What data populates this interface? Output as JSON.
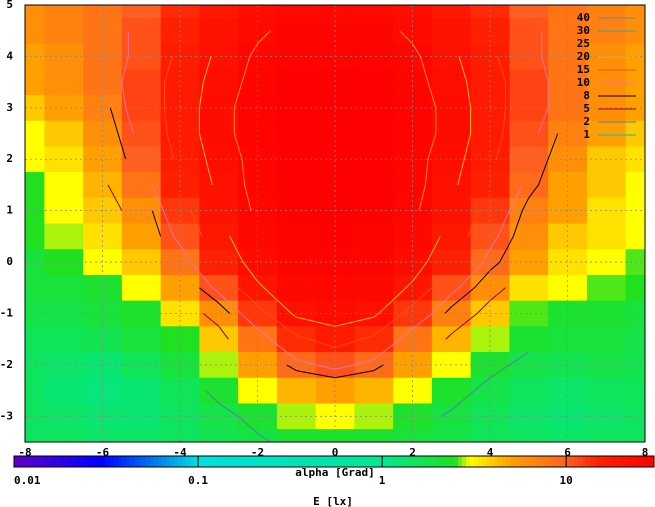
{
  "chart_data": {
    "type": "heatmap",
    "xlabel": "alpha [Grad]",
    "colorbar_label": "E [lx]",
    "xlim": [
      -8,
      8
    ],
    "ylim": [
      -3.5,
      5
    ],
    "xticks": [
      -8,
      -6,
      -4,
      -2,
      0,
      2,
      4,
      6,
      8
    ],
    "yticks": [
      -3,
      -2,
      -1,
      0,
      1,
      2,
      3,
      4,
      5
    ],
    "grid": true,
    "x": [
      -8,
      -7,
      -6,
      -5,
      -4,
      -3,
      -2,
      -1,
      0,
      1,
      2,
      3,
      4,
      5,
      6,
      7,
      8
    ],
    "y": [
      5,
      4.5,
      4,
      3.5,
      3,
      2.5,
      2,
      1.5,
      1,
      0.5,
      0,
      -0.5,
      -1,
      -1.5,
      -2,
      -2.5,
      -3,
      -3.5
    ],
    "z": [
      [
        6,
        7,
        8,
        10,
        14,
        18,
        22,
        25,
        25,
        25,
        22,
        18,
        14,
        10,
        8,
        7,
        6
      ],
      [
        6,
        7,
        8,
        11,
        15,
        20,
        24,
        27,
        27,
        27,
        24,
        20,
        15,
        11,
        8,
        7,
        6
      ],
      [
        5,
        6,
        8,
        11,
        16,
        21,
        26,
        28,
        28,
        28,
        26,
        21,
        16,
        11,
        8,
        6,
        5
      ],
      [
        5,
        6,
        8,
        12,
        17,
        22,
        27,
        30,
        30,
        30,
        27,
        22,
        17,
        12,
        8,
        6,
        5
      ],
      [
        4,
        5,
        7,
        12,
        17,
        23,
        28,
        30,
        30,
        30,
        28,
        23,
        17,
        12,
        8,
        6,
        5
      ],
      [
        3,
        4,
        6,
        11,
        17,
        23,
        28,
        30,
        30,
        30,
        28,
        23,
        17,
        11,
        7,
        5,
        4
      ],
      [
        3,
        3.5,
        5,
        10,
        16,
        22,
        27,
        30,
        30,
        30,
        27,
        22,
        16,
        10,
        6,
        4,
        3.5
      ],
      [
        2.5,
        3,
        4.5,
        8,
        15,
        21,
        27,
        29,
        30,
        30,
        27,
        21,
        15,
        9,
        5,
        4,
        3
      ],
      [
        2.5,
        3,
        4,
        6,
        13,
        20,
        26,
        29,
        30,
        29,
        26,
        20,
        13,
        7,
        5,
        3.5,
        3
      ],
      [
        2.5,
        2.8,
        3.5,
        5,
        11,
        18,
        25,
        28,
        29,
        28,
        25,
        18,
        11,
        6,
        4,
        3.5,
        3
      ],
      [
        2,
        2.5,
        3,
        4,
        8,
        15,
        23,
        27,
        28,
        27,
        23,
        15,
        9,
        5,
        3.5,
        3,
        2.6
      ],
      [
        2,
        2,
        2.2,
        3,
        5,
        11,
        19,
        25,
        26,
        25,
        19,
        11,
        6,
        3.5,
        3,
        2.6,
        2.5
      ],
      [
        1.8,
        1.8,
        2,
        2.3,
        3.5,
        6,
        13,
        21,
        23,
        21,
        13,
        7,
        4,
        2.6,
        2.2,
        2.2,
        2
      ],
      [
        1.6,
        1.6,
        1.7,
        2,
        2.5,
        4,
        8,
        14,
        17,
        14,
        8,
        4.5,
        2.8,
        2.2,
        2,
        2,
        1.8
      ],
      [
        1.5,
        1.4,
        1.3,
        1.6,
        2,
        2.8,
        5,
        9,
        11,
        9,
        5,
        3,
        2.2,
        1.8,
        1.7,
        1.8,
        1.7
      ],
      [
        1.5,
        1.3,
        1.2,
        1.3,
        1.6,
        2.2,
        3,
        4.5,
        5,
        4.5,
        3,
        2.3,
        1.8,
        1.5,
        1.4,
        1.5,
        1.6
      ],
      [
        1.5,
        1.4,
        1.3,
        1.3,
        1.5,
        1.8,
        2.2,
        2.8,
        3,
        2.8,
        2.3,
        1.9,
        1.6,
        1.4,
        1.3,
        1.4,
        1.5
      ],
      [
        1.5,
        1.5,
        1.4,
        1.4,
        1.5,
        1.7,
        1.9,
        2.2,
        2.3,
        2.2,
        2,
        1.8,
        1.6,
        1.5,
        1.4,
        1.5,
        1.5
      ]
    ],
    "colorscale": [
      [
        0.01,
        "#6000c8"
      ],
      [
        0.03,
        "#0000ff"
      ],
      [
        0.1,
        "#00e0e0"
      ],
      [
        1,
        "#00e890"
      ],
      [
        2.5,
        "#20e020"
      ],
      [
        3,
        "#ffff00"
      ],
      [
        5,
        "#ffa000"
      ],
      [
        10,
        "#ff6020"
      ],
      [
        15,
        "#ff2000"
      ],
      [
        30,
        "#ff0000"
      ]
    ],
    "cblim": [
      0.01,
      30
    ],
    "cbticks": [
      0.01,
      0.1,
      1,
      10
    ],
    "log_colorbar": true,
    "contour_levels": [
      40,
      30,
      25,
      20,
      15,
      10,
      8,
      5,
      2,
      1
    ],
    "contour_colors": [
      "#808080",
      "#40a0a0",
      "#ff9000",
      "#e0c000",
      "#ff5000",
      "#ff70a0",
      "#000000",
      "#a00000",
      "#5080a0",
      "#00c0c0"
    ]
  }
}
